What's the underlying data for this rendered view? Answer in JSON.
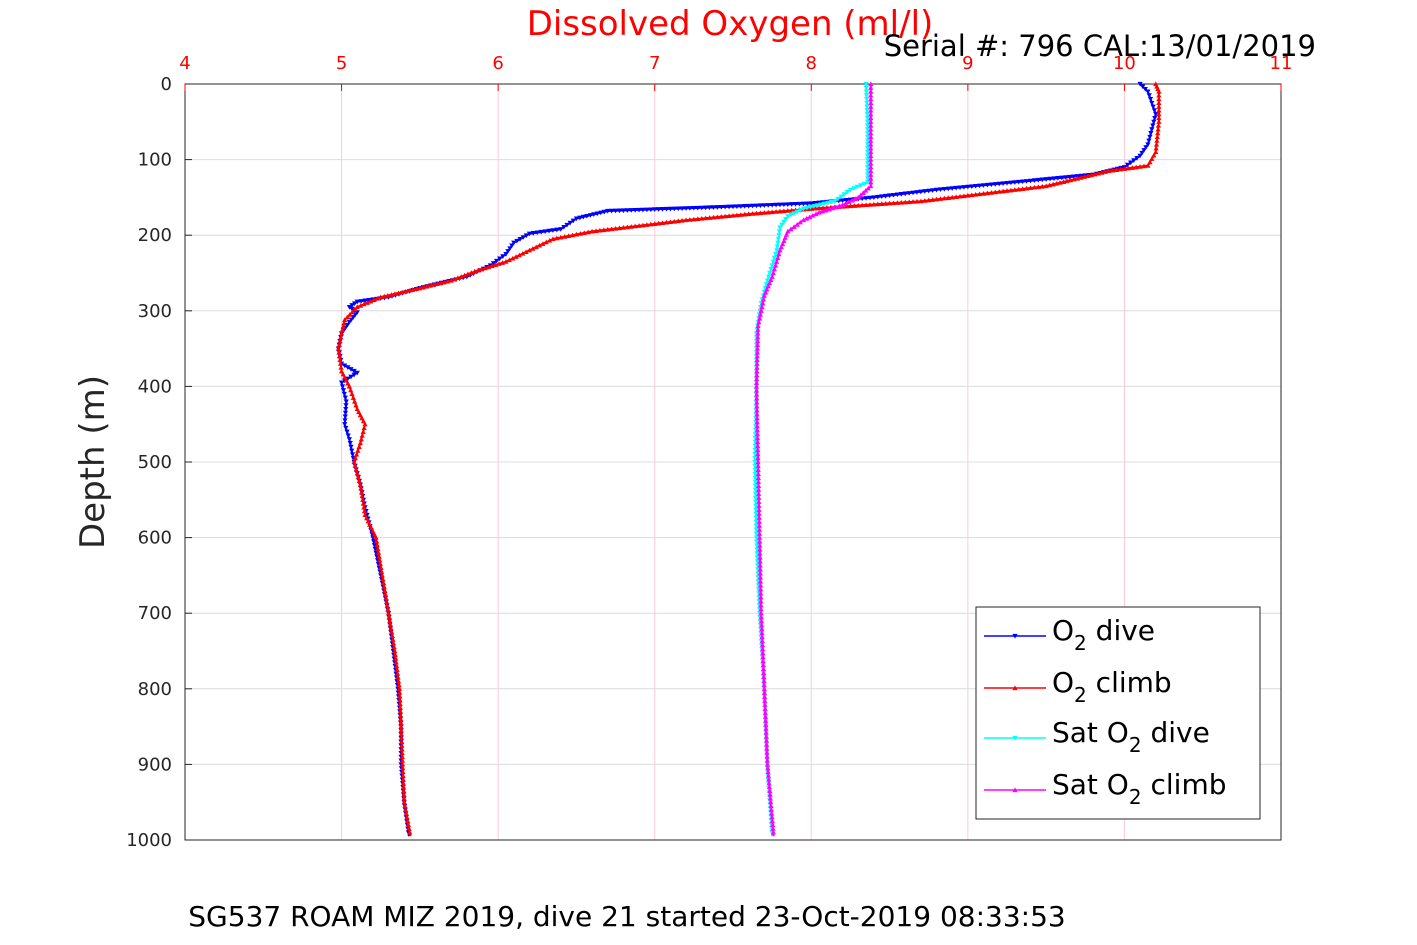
{
  "chart_data": {
    "type": "line",
    "title": "Dissolved Oxygen (ml/l)",
    "subtitle": "Serial #: 796  CAL:13/01/2019",
    "footer": "SG537 ROAM MIZ 2019, dive 21 started 23-Oct-2019 08:33:53",
    "ylabel": "Depth (m)",
    "xlabel": "",
    "xlim": [
      4,
      11
    ],
    "ylim": [
      0,
      1000
    ],
    "y_reversed": true,
    "x_axis_position": "top",
    "x_tick_color": "#ff0000",
    "grid_color": "#ffc8dc",
    "xticks": [
      "4",
      "5",
      "6",
      "7",
      "8",
      "9",
      "10",
      "11"
    ],
    "yticks": [
      "0",
      "100",
      "200",
      "300",
      "400",
      "500",
      "600",
      "700",
      "800",
      "900",
      "1000"
    ],
    "grid": true,
    "legend_position": "bottom-right",
    "series": [
      {
        "key": "o2_dive",
        "name_main": "O",
        "name_sub": "2",
        "name_rest": " dive",
        "color": "#0000ff",
        "marker": "triangle-down",
        "points": [
          [
            10.1,
            0
          ],
          [
            10.15,
            10
          ],
          [
            10.2,
            40
          ],
          [
            10.15,
            80
          ],
          [
            10.1,
            95
          ],
          [
            10.0,
            110
          ],
          [
            9.8,
            120
          ],
          [
            9.3,
            130
          ],
          [
            8.8,
            140
          ],
          [
            8.4,
            150
          ],
          [
            8.0,
            158
          ],
          [
            7.4,
            163
          ],
          [
            6.7,
            168
          ],
          [
            6.5,
            178
          ],
          [
            6.4,
            192
          ],
          [
            6.2,
            198
          ],
          [
            6.1,
            210
          ],
          [
            6.05,
            225
          ],
          [
            5.95,
            240
          ],
          [
            5.8,
            255
          ],
          [
            5.5,
            270
          ],
          [
            5.3,
            282
          ],
          [
            5.1,
            288
          ],
          [
            5.05,
            295
          ],
          [
            5.1,
            302
          ],
          [
            5.05,
            315
          ],
          [
            5.0,
            330
          ],
          [
            4.98,
            350
          ],
          [
            5.0,
            370
          ],
          [
            5.1,
            382
          ],
          [
            5.0,
            395
          ],
          [
            5.03,
            420
          ],
          [
            5.02,
            450
          ],
          [
            5.05,
            470
          ],
          [
            5.08,
            500
          ],
          [
            5.12,
            530
          ],
          [
            5.15,
            560
          ],
          [
            5.2,
            600
          ],
          [
            5.25,
            650
          ],
          [
            5.3,
            700
          ],
          [
            5.33,
            750
          ],
          [
            5.36,
            800
          ],
          [
            5.38,
            850
          ],
          [
            5.38,
            900
          ],
          [
            5.4,
            950
          ],
          [
            5.43,
            995
          ]
        ]
      },
      {
        "key": "o2_climb",
        "name_main": "O",
        "name_sub": "2",
        "name_rest": " climb",
        "color": "#ff0000",
        "marker": "triangle-up",
        "points": [
          [
            10.2,
            0
          ],
          [
            10.22,
            10
          ],
          [
            10.22,
            50
          ],
          [
            10.2,
            90
          ],
          [
            10.15,
            108
          ],
          [
            9.9,
            115
          ],
          [
            9.7,
            125
          ],
          [
            9.5,
            135
          ],
          [
            9.1,
            145
          ],
          [
            8.7,
            155
          ],
          [
            8.0,
            165
          ],
          [
            7.6,
            172
          ],
          [
            7.2,
            180
          ],
          [
            6.8,
            190
          ],
          [
            6.6,
            195
          ],
          [
            6.35,
            205
          ],
          [
            6.2,
            220
          ],
          [
            6.05,
            235
          ],
          [
            5.85,
            248
          ],
          [
            5.7,
            260
          ],
          [
            5.5,
            270
          ],
          [
            5.25,
            282
          ],
          [
            5.1,
            295
          ],
          [
            5.02,
            312
          ],
          [
            5.0,
            330
          ],
          [
            4.98,
            350
          ],
          [
            5.0,
            380
          ],
          [
            5.05,
            400
          ],
          [
            5.1,
            430
          ],
          [
            5.15,
            450
          ],
          [
            5.12,
            475
          ],
          [
            5.08,
            500
          ],
          [
            5.12,
            530
          ],
          [
            5.15,
            570
          ],
          [
            5.22,
            600
          ],
          [
            5.26,
            650
          ],
          [
            5.3,
            700
          ],
          [
            5.34,
            750
          ],
          [
            5.37,
            800
          ],
          [
            5.38,
            850
          ],
          [
            5.39,
            900
          ],
          [
            5.4,
            950
          ],
          [
            5.44,
            995
          ]
        ]
      },
      {
        "key": "sat_dive",
        "name_main": "Sat O",
        "name_sub": "2",
        "name_rest": " dive",
        "color": "#00ffff",
        "marker": "triangle-down",
        "points": [
          [
            8.35,
            0
          ],
          [
            8.36,
            50
          ],
          [
            8.36,
            130
          ],
          [
            8.25,
            140
          ],
          [
            8.15,
            155
          ],
          [
            7.95,
            165
          ],
          [
            7.85,
            175
          ],
          [
            7.8,
            190
          ],
          [
            7.78,
            220
          ],
          [
            7.72,
            260
          ],
          [
            7.68,
            290
          ],
          [
            7.65,
            330
          ],
          [
            7.65,
            400
          ],
          [
            7.64,
            500
          ],
          [
            7.65,
            600
          ],
          [
            7.67,
            700
          ],
          [
            7.7,
            800
          ],
          [
            7.72,
            900
          ],
          [
            7.75,
            995
          ]
        ]
      },
      {
        "key": "sat_climb",
        "name_main": "Sat O",
        "name_sub": "2",
        "name_rest": " climb",
        "color": "#ff00ff",
        "marker": "triangle-up",
        "points": [
          [
            8.38,
            0
          ],
          [
            8.38,
            60
          ],
          [
            8.38,
            135
          ],
          [
            8.3,
            150
          ],
          [
            8.2,
            160
          ],
          [
            8.05,
            170
          ],
          [
            7.95,
            180
          ],
          [
            7.85,
            195
          ],
          [
            7.8,
            220
          ],
          [
            7.75,
            255
          ],
          [
            7.7,
            280
          ],
          [
            7.66,
            320
          ],
          [
            7.65,
            400
          ],
          [
            7.66,
            500
          ],
          [
            7.67,
            600
          ],
          [
            7.68,
            700
          ],
          [
            7.7,
            800
          ],
          [
            7.72,
            900
          ],
          [
            7.76,
            995
          ]
        ]
      }
    ]
  }
}
